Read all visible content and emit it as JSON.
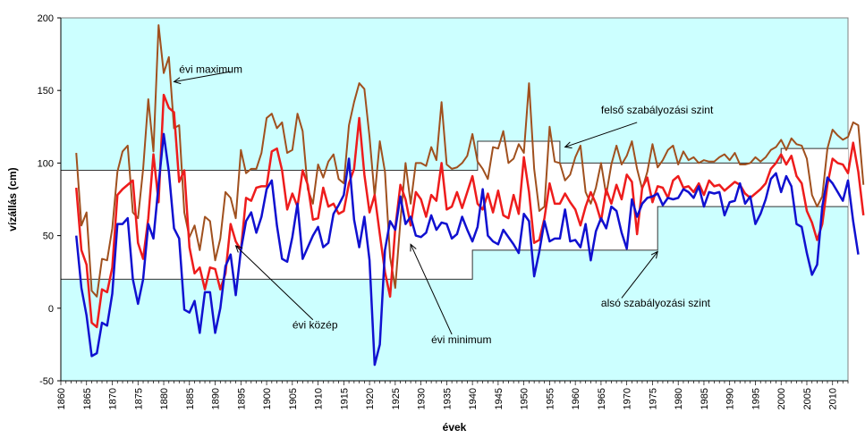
{
  "chart_data": {
    "type": "line",
    "title": "",
    "xlabel": "évek",
    "ylabel": "vízállás (cm)",
    "xlim": [
      1860,
      2013
    ],
    "ylim": [
      -50,
      200
    ],
    "x_ticks": [
      1860,
      1865,
      1870,
      1875,
      1880,
      1885,
      1890,
      1895,
      1900,
      1905,
      1910,
      1915,
      1920,
      1925,
      1930,
      1935,
      1940,
      1945,
      1950,
      1955,
      1960,
      1965,
      1970,
      1975,
      1980,
      1985,
      1990,
      1995,
      2000,
      2005,
      2010
    ],
    "y_ticks": [
      -50,
      0,
      50,
      100,
      150,
      200
    ],
    "colors": {
      "plot_bg": "#ccffff",
      "maximum": "#a0501e",
      "kozep": "#ee1c1c",
      "minimum": "#1010d0",
      "levels": "#333333"
    },
    "series": [
      {
        "name": "évi maximum",
        "key": "maximum",
        "x_start": 1863,
        "values": [
          107,
          57,
          66,
          12,
          8,
          34,
          33,
          55,
          94,
          108,
          112,
          66,
          62,
          96,
          144,
          108,
          195,
          162,
          173,
          124,
          126,
          66,
          49,
          57,
          40,
          63,
          60,
          33,
          48,
          80,
          76,
          62,
          109,
          93,
          96,
          96,
          107,
          131,
          134,
          124,
          128,
          107,
          109,
          134,
          122,
          82,
          72,
          99,
          90,
          101,
          106,
          89,
          86,
          126,
          142,
          155,
          151,
          118,
          77,
          115,
          94,
          35,
          14,
          60,
          100,
          72,
          100,
          100,
          98,
          111,
          102,
          142,
          99,
          96,
          97,
          100,
          105,
          120,
          101,
          96,
          89,
          111,
          110,
          122,
          100,
          103,
          113,
          107,
          155,
          96,
          67,
          70,
          125,
          101,
          100,
          88,
          92,
          104,
          112,
          80,
          72,
          83,
          100,
          78,
          99,
          112,
          99,
          105,
          115,
          96,
          82,
          94,
          113,
          97,
          102,
          109,
          112,
          99,
          108,
          102,
          104,
          100,
          102,
          101,
          101,
          104,
          106,
          102,
          107,
          99,
          99,
          100,
          104,
          101,
          104,
          109,
          111,
          116,
          109,
          117,
          113,
          112,
          103,
          78,
          70,
          77,
          110,
          123,
          119,
          116,
          118,
          128,
          126,
          85
        ]
      },
      {
        "name": "évi közép",
        "key": "kozep",
        "x_start": 1863,
        "values": [
          83,
          40,
          30,
          -10,
          -13,
          13,
          11,
          28,
          78,
          82,
          85,
          88,
          45,
          34,
          62,
          106,
          73,
          147,
          138,
          135,
          87,
          95,
          42,
          24,
          28,
          13,
          28,
          27,
          13,
          24,
          58,
          46,
          40,
          76,
          74,
          83,
          84,
          84,
          108,
          110,
          95,
          68,
          79,
          70,
          95,
          85,
          61,
          62,
          83,
          70,
          72,
          65,
          67,
          86,
          96,
          131,
          92,
          66,
          78,
          51,
          25,
          8,
          55,
          85,
          75,
          57,
          80,
          75,
          63,
          78,
          74,
          100,
          68,
          70,
          80,
          69,
          80,
          91,
          72,
          68,
          79,
          66,
          81,
          64,
          62,
          78,
          65,
          104,
          80,
          45,
          47,
          62,
          86,
          72,
          72,
          79,
          73,
          68,
          57,
          70,
          80,
          72,
          60,
          82,
          72,
          85,
          75,
          92,
          87,
          51,
          83,
          90,
          73,
          84,
          83,
          76,
          88,
          91,
          83,
          84,
          80,
          86,
          78,
          88,
          84,
          85,
          81,
          84,
          87,
          85,
          79,
          76,
          79,
          82,
          86,
          96,
          100,
          106,
          99,
          105,
          91,
          86,
          67,
          59,
          47,
          58,
          85,
          103,
          100,
          99,
          93,
          114,
          94,
          64
        ]
      },
      {
        "name": "évi minimum",
        "key": "minimum",
        "x_start": 1863,
        "values": [
          50,
          14,
          -5,
          -33,
          -31,
          -10,
          -12,
          10,
          58,
          58,
          62,
          20,
          3,
          20,
          58,
          48,
          85,
          120,
          94,
          55,
          48,
          -1,
          -3,
          5,
          -17,
          11,
          11,
          -17,
          0,
          29,
          37,
          9,
          40,
          60,
          66,
          52,
          63,
          82,
          88,
          57,
          34,
          32,
          49,
          72,
          34,
          42,
          50,
          56,
          42,
          45,
          65,
          71,
          78,
          103,
          61,
          42,
          63,
          33,
          -39,
          -25,
          40,
          60,
          54,
          77,
          58,
          63,
          50,
          49,
          52,
          64,
          54,
          59,
          58,
          48,
          51,
          63,
          54,
          46,
          56,
          82,
          50,
          46,
          44,
          54,
          49,
          44,
          38,
          65,
          60,
          22,
          39,
          60,
          46,
          48,
          48,
          68,
          46,
          47,
          42,
          58,
          33,
          53,
          62,
          55,
          70,
          67,
          52,
          41,
          75,
          63,
          72,
          76,
          77,
          79,
          71,
          76,
          75,
          76,
          82,
          80,
          76,
          84,
          70,
          80,
          79,
          80,
          64,
          73,
          74,
          86,
          72,
          77,
          58,
          65,
          75,
          89,
          93,
          80,
          91,
          84,
          58,
          56,
          38,
          23,
          30,
          70,
          90,
          86,
          80,
          74,
          88,
          60,
          37
        ]
      }
    ],
    "reference_lines": [
      {
        "name": "felső szabályozási szint",
        "points": [
          [
            1860,
            95
          ],
          [
            1941,
            95
          ],
          [
            1941,
            115
          ],
          [
            1957,
            115
          ],
          [
            1957,
            100
          ],
          [
            2000,
            100
          ],
          [
            2000,
            110
          ],
          [
            2013,
            110
          ]
        ]
      },
      {
        "name": "alsó szabályozási szint",
        "points": [
          [
            1860,
            20
          ],
          [
            1940,
            20
          ],
          [
            1940,
            40
          ],
          [
            1976,
            40
          ],
          [
            1976,
            70
          ],
          [
            2013,
            70
          ]
        ]
      }
    ],
    "annotations": [
      {
        "label": "évi maximum",
        "text_at": [
          1883,
          162
        ],
        "arrow_from": [
          1893,
          163
        ],
        "arrow_to": [
          1882,
          156
        ]
      },
      {
        "label": "felső szabályozási szint",
        "text_at": [
          1965,
          134
        ],
        "arrow_from": [
          1972,
          128
        ],
        "arrow_to": [
          1958,
          111
        ]
      },
      {
        "label": "évi közép",
        "text_at": [
          1905,
          -14
        ],
        "arrow_from": [
          1909,
          -8
        ],
        "arrow_to": [
          1894,
          43
        ]
      },
      {
        "label": "alsó szabályozási szint",
        "text_at": [
          1965,
          1
        ],
        "arrow_from": [
          1969,
          7
        ],
        "arrow_to": [
          1976,
          39
        ]
      },
      {
        "label": "évi minimum",
        "text_at": [
          1932,
          -24
        ],
        "arrow_from": [
          1936,
          -18
        ],
        "arrow_to": [
          1928,
          44
        ]
      }
    ]
  }
}
